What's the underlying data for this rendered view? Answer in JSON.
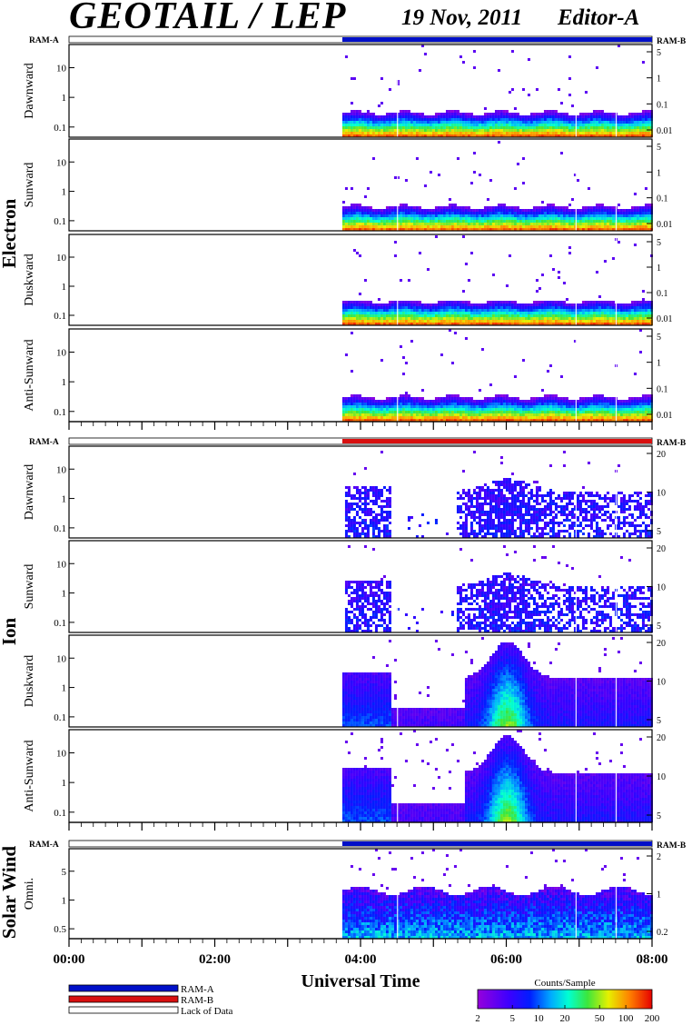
{
  "header": {
    "title": "GEOTAIL / LEP",
    "date": "19 Nov, 2011",
    "editor": "Editor-A"
  },
  "colors": {
    "ram_a": "#0010c8",
    "ram_b": "#d81010",
    "lack_of_data": "#ffffff"
  },
  "status_labels": {
    "left": "RAM-A",
    "right": "RAM-B"
  },
  "x_axis": {
    "label": "Universal Time",
    "ticks": [
      "00:00",
      "02:00",
      "04:00",
      "06:00",
      "08:00"
    ],
    "range_hours": [
      0,
      8
    ]
  },
  "legend": {
    "items": [
      {
        "key": "ram_a",
        "label": "RAM-A"
      },
      {
        "key": "ram_b",
        "label": "RAM-B"
      },
      {
        "key": "lack_of_data",
        "label": "Lack of Data"
      }
    ]
  },
  "colorbar": {
    "title": "Counts/Sample",
    "ticks": [
      "2",
      "5",
      "10",
      "20",
      "50",
      "100",
      "200"
    ],
    "range": [
      2,
      200
    ],
    "scale": "log"
  },
  "chart_data": {
    "type": "heatmap",
    "data_start_hour": 3.75,
    "groups": [
      {
        "name": "Electron",
        "status": "ram_a",
        "panels": [
          {
            "label": "Dawnward",
            "left_ticks": [
              "10",
              "1",
              "0.1"
            ],
            "right_ticks": [
              "5",
              "1",
              "0.1",
              "0.01"
            ],
            "profile": "electron"
          },
          {
            "label": "Sunward",
            "left_ticks": [
              "10",
              "1",
              "0.1"
            ],
            "right_ticks": [
              "5",
              "1",
              "0.1",
              "0.01"
            ],
            "profile": "electron"
          },
          {
            "label": "Duskward",
            "left_ticks": [
              "10",
              "1",
              "0.1"
            ],
            "right_ticks": [
              "5",
              "1",
              "0.1",
              "0.01"
            ],
            "profile": "electron"
          },
          {
            "label": "Anti-Sunward",
            "left_ticks": [
              "10",
              "1",
              "0.1"
            ],
            "right_ticks": [
              "5",
              "1",
              "0.1",
              "0.01"
            ],
            "profile": "electron"
          }
        ]
      },
      {
        "name": "Ion",
        "status": "ram_b",
        "panels": [
          {
            "label": "Dawnward",
            "left_ticks": [
              "10",
              "1",
              "0.1"
            ],
            "right_ticks": [
              "20",
              "10",
              "5"
            ],
            "profile": "ion-sparse"
          },
          {
            "label": "Sunward",
            "left_ticks": [
              "10",
              "1",
              "0.1"
            ],
            "right_ticks": [
              "20",
              "10",
              "5"
            ],
            "profile": "ion-sparse"
          },
          {
            "label": "Duskward",
            "left_ticks": [
              "10",
              "1",
              "0.1"
            ],
            "right_ticks": [
              "20",
              "10",
              "5"
            ],
            "profile": "ion-dense"
          },
          {
            "label": "Anti-Sunward",
            "left_ticks": [
              "10",
              "1",
              "0.1"
            ],
            "right_ticks": [
              "20",
              "10",
              "5"
            ],
            "profile": "ion-dense"
          }
        ]
      },
      {
        "name": "Solar Wind",
        "status": "ram_a",
        "panels": [
          {
            "label": "Omni.",
            "left_ticks": [
              "5",
              "1",
              "0.5"
            ],
            "right_ticks": [
              "2",
              "1",
              "0.2"
            ],
            "profile": "solarwind"
          }
        ]
      }
    ]
  }
}
